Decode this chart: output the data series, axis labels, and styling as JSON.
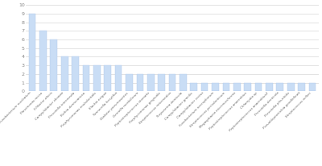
{
  "categories": [
    "Fusobacterium nucleatum",
    "Parvimonas micra",
    "Filifactor alocis",
    "Campylobacter showae",
    "Prevotella intermedia",
    "Rothia dentocariosa",
    "Porphyromonas endodontalis",
    "Slackia exigua",
    "Tannerella forsythia",
    "Dialister pneumosintes",
    "Gemella morbillorum",
    "Peptostreptococcus stomatis",
    "Porphyromonas gingivalis",
    "Streptococcus intermedius",
    "Treponema denticola",
    "Campylobacter gracilis",
    "Campylobacter rectus",
    "Fusobacterium necrophorum",
    "Streptococcus periodonticum",
    "Megasphaera micronuciformis",
    "Peptostreptococcus anaerobius",
    "Chlamydia sp",
    "Peptostreptococcus anaerobius2",
    "Prevotella denticola",
    "Prevotella pleuritidis",
    "Pseudoleptotrichia goodfellowii",
    "Streptococcus milleri"
  ],
  "values": [
    9,
    7,
    6,
    4,
    4,
    3,
    3,
    3,
    3,
    2,
    2,
    2,
    2,
    2,
    2,
    1,
    1,
    1,
    1,
    1,
    1,
    1,
    1,
    1,
    1,
    1,
    1
  ],
  "bar_color": "#c9ddf5",
  "bar_edge_color": "#b0c8e8",
  "ylim": [
    0,
    10
  ],
  "yticks": [
    0,
    1,
    2,
    3,
    4,
    5,
    6,
    7,
    8,
    9,
    10
  ],
  "background_color": "#ffffff",
  "grid_color": "#d8d8d8"
}
